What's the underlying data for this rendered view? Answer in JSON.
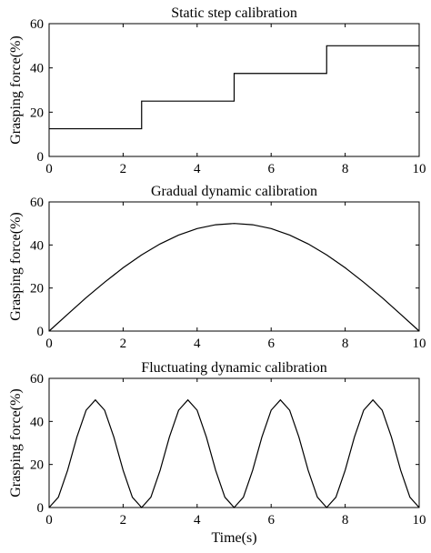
{
  "chart_data": [
    {
      "type": "line",
      "title": "Static step calibration",
      "xlabel": "",
      "ylabel": "Grasping force(%)",
      "xlim": [
        0,
        10
      ],
      "ylim": [
        0,
        60
      ],
      "xticks": [
        0,
        2,
        4,
        6,
        8,
        10
      ],
      "yticks": [
        0,
        20,
        40,
        60
      ],
      "grid": false,
      "series": [
        {
          "x": [
            0,
            2.5,
            2.5,
            5,
            5,
            7.5,
            7.5,
            10
          ],
          "y": [
            12.5,
            12.5,
            25,
            25,
            37.5,
            37.5,
            50,
            50
          ]
        }
      ]
    },
    {
      "type": "line",
      "title": "Gradual dynamic calibration",
      "xlabel": "",
      "ylabel": "Grasping force(%)",
      "xlim": [
        0,
        10
      ],
      "ylim": [
        0,
        60
      ],
      "xticks": [
        0,
        2,
        4,
        6,
        8,
        10
      ],
      "yticks": [
        0,
        20,
        40,
        60
      ],
      "grid": false,
      "series": [
        {
          "x": [
            0,
            0.5,
            1,
            1.5,
            2,
            2.5,
            3,
            3.5,
            4,
            4.5,
            5,
            5.5,
            6,
            6.5,
            7,
            7.5,
            8,
            8.5,
            9,
            9.5,
            10
          ],
          "y": [
            0,
            7.8,
            15.5,
            22.7,
            29.4,
            35.4,
            40.5,
            44.6,
            47.6,
            49.4,
            50,
            49.4,
            47.6,
            44.6,
            40.5,
            35.4,
            29.4,
            22.7,
            15.5,
            7.8,
            0
          ]
        }
      ]
    },
    {
      "type": "line",
      "title": "Fluctuating dynamic calibration",
      "xlabel": "Time(s)",
      "ylabel": "Grasping force(%)",
      "xlim": [
        0,
        10
      ],
      "ylim": [
        0,
        60
      ],
      "xticks": [
        0,
        2,
        4,
        6,
        8,
        10
      ],
      "yticks": [
        0,
        20,
        40,
        60
      ],
      "grid": false,
      "series": [
        {
          "x": [
            0,
            0.25,
            0.5,
            0.75,
            1,
            1.25,
            1.5,
            1.75,
            2,
            2.25,
            2.5,
            2.75,
            3,
            3.25,
            3.5,
            3.75,
            4,
            4.25,
            4.5,
            4.75,
            5,
            5.25,
            5.5,
            5.75,
            6,
            6.25,
            6.5,
            6.75,
            7,
            7.25,
            7.5,
            7.75,
            8,
            8.25,
            8.5,
            8.75,
            9,
            9.25,
            9.5,
            9.75,
            10
          ],
          "y": [
            0,
            4.8,
            17.3,
            32.7,
            45.2,
            50,
            45.2,
            32.7,
            17.3,
            4.8,
            0,
            4.8,
            17.3,
            32.7,
            45.2,
            50,
            45.2,
            32.7,
            17.3,
            4.8,
            0,
            4.8,
            17.3,
            32.7,
            45.2,
            50,
            45.2,
            32.7,
            17.3,
            4.8,
            0,
            4.8,
            17.3,
            32.7,
            45.2,
            50,
            45.2,
            32.7,
            17.3,
            4.8,
            0
          ]
        }
      ]
    }
  ]
}
